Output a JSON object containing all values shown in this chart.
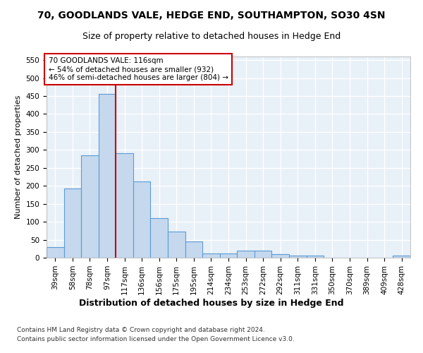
{
  "title1": "70, GOODLANDS VALE, HEDGE END, SOUTHAMPTON, SO30 4SN",
  "title2": "Size of property relative to detached houses in Hedge End",
  "xlabel": "Distribution of detached houses by size in Hedge End",
  "ylabel": "Number of detached properties",
  "categories": [
    "39sqm",
    "58sqm",
    "78sqm",
    "97sqm",
    "117sqm",
    "136sqm",
    "156sqm",
    "175sqm",
    "195sqm",
    "214sqm",
    "234sqm",
    "253sqm",
    "272sqm",
    "292sqm",
    "311sqm",
    "331sqm",
    "350sqm",
    "370sqm",
    "389sqm",
    "409sqm",
    "428sqm"
  ],
  "values": [
    30,
    192,
    285,
    456,
    290,
    213,
    110,
    73,
    46,
    12,
    12,
    20,
    20,
    9,
    5,
    5,
    0,
    0,
    0,
    0,
    5
  ],
  "bar_color": "#c5d8ed",
  "bar_edge_color": "#5b9bd5",
  "highlight_index": 4,
  "highlight_color": "#cc0000",
  "annotation_text": "70 GOODLANDS VALE: 116sqm\n← 54% of detached houses are smaller (932)\n46% of semi-detached houses are larger (804) →",
  "annotation_box_color": "#ffffff",
  "annotation_box_edge": "#cc0000",
  "ylim": [
    0,
    560
  ],
  "yticks": [
    0,
    50,
    100,
    150,
    200,
    250,
    300,
    350,
    400,
    450,
    500,
    550
  ],
  "footer1": "Contains HM Land Registry data © Crown copyright and database right 2024.",
  "footer2": "Contains public sector information licensed under the Open Government Licence v3.0.",
  "background_color": "#e8f0f8",
  "fig_background": "#ffffff",
  "grid_color": "#ffffff",
  "title1_fontsize": 10,
  "title2_fontsize": 9,
  "xlabel_fontsize": 9,
  "ylabel_fontsize": 8,
  "tick_fontsize": 7.5,
  "footer_fontsize": 6.5,
  "annot_fontsize": 7.5
}
